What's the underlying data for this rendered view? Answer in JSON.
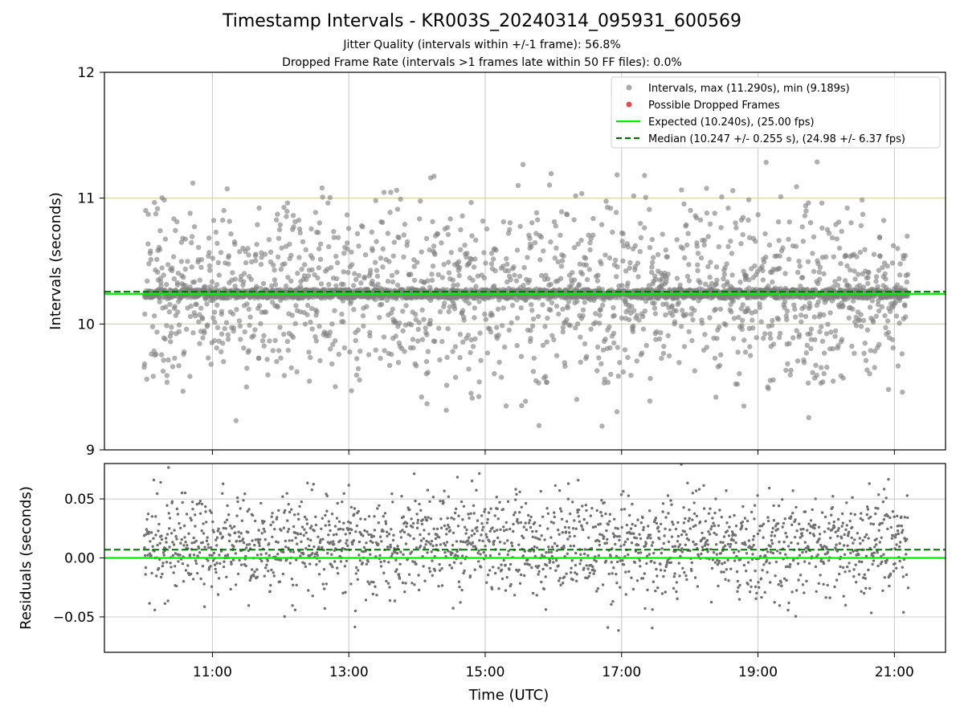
{
  "title": "Timestamp Intervals - KR003S_20240314_095931_600569",
  "subtitle_jitter": "Jitter Quality (intervals within +/-1 frame): 56.8%",
  "subtitle_dropped": "Dropped Frame Rate (intervals >1 frames late within 50 FF files): 0.0%",
  "colors": {
    "scatter": "#808080",
    "dropped": "#e8494b",
    "expected": "#00ee00",
    "median": "#007000",
    "tolerance": "#d8cf96",
    "grid": "#c8c8c8",
    "residuals": "#707070"
  },
  "chart_data": [
    {
      "type": "scatter",
      "panel": "intervals",
      "ylabel": "Intervals (seconds)",
      "ylim": [
        9,
        12
      ],
      "y_ticks": [
        9,
        10,
        11,
        12
      ],
      "xlim": [
        "09:25",
        "21:45"
      ],
      "grid": true,
      "legend_position": "top-right",
      "legend": [
        {
          "label": "Intervals, max (11.290s), min (9.189s)",
          "kind": "marker",
          "color": "#a8a8a8"
        },
        {
          "label": "Possible Dropped Frames",
          "kind": "marker",
          "color": "#e8494b"
        },
        {
          "label": "Expected (10.240s), (25.00 fps)",
          "kind": "solid",
          "color": "#00ee00"
        },
        {
          "label": "Median (10.247 +/- 0.255 s), (24.98 +/- 6.37 fps)",
          "kind": "dashed",
          "color": "#007000"
        }
      ],
      "series": [
        {
          "name": "Intervals, max (11.290s), min (9.189s)",
          "approx_points": 3500,
          "x_range": [
            "10:00",
            "21:12"
          ],
          "y_min": 9.189,
          "y_max": 11.29,
          "y_center": 10.24,
          "note_count": 3500
        },
        {
          "name": "Possible Dropped Frames",
          "points": []
        }
      ],
      "lines": [
        {
          "name": "Expected (10.240s), (25.00 fps)",
          "y": 10.24,
          "style": "solid"
        },
        {
          "name": "Median (10.247 +/- 0.255 s), (24.98 +/- 6.37 fps)",
          "y": 10.247,
          "style": "dashed"
        },
        {
          "y": 11.0,
          "style": "tolerance"
        },
        {
          "y": 10.0,
          "style": "tolerance"
        }
      ]
    },
    {
      "type": "scatter",
      "panel": "residuals",
      "ylabel": "Residuals (seconds)",
      "xlabel": "Time (UTC)",
      "ylim": [
        -0.08,
        0.08
      ],
      "y_ticks": [
        0.05,
        0.0,
        -0.05
      ],
      "y_tick_labels": [
        "0.05",
        "0.00",
        "−0.05"
      ],
      "x_ticks": [
        "11:00",
        "13:00",
        "15:00",
        "17:00",
        "19:00",
        "21:00"
      ],
      "xlim": [
        "09:25",
        "21:45"
      ],
      "grid": true,
      "series": [
        {
          "approx_points": 1900,
          "x_range": [
            "10:00",
            "21:12"
          ],
          "y_range": [
            -0.08,
            0.08
          ]
        }
      ],
      "lines": [
        {
          "y": 0.0,
          "style": "solid"
        },
        {
          "y": 0.007,
          "style": "dashed"
        }
      ]
    }
  ]
}
